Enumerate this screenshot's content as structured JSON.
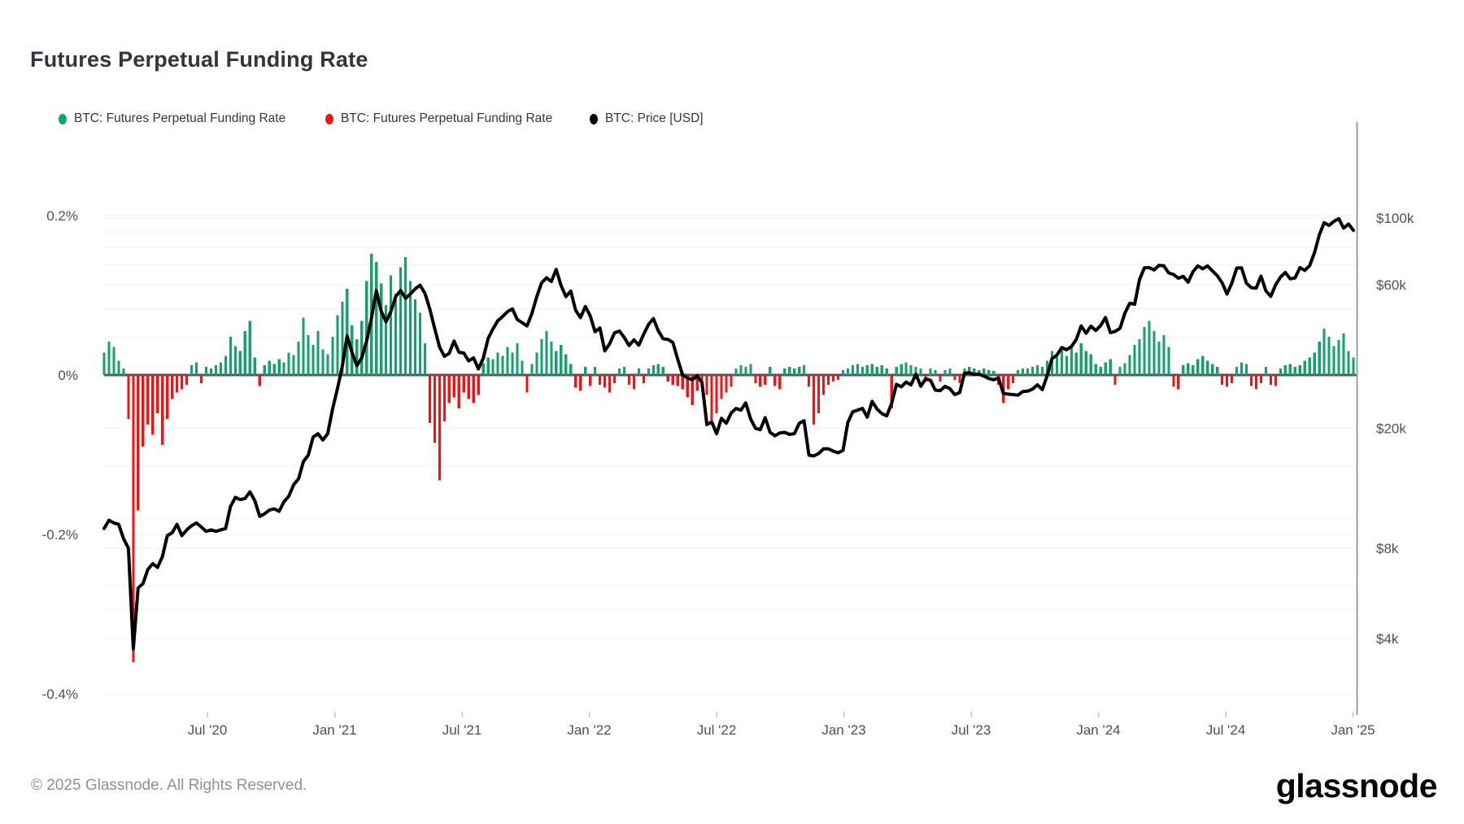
{
  "page": {
    "title": "Futures Perpetual Funding Rate"
  },
  "legend": {
    "items": [
      {
        "label": "BTC: Futures Perpetual Funding Rate",
        "color": "#12a36a"
      },
      {
        "label": "BTC: Futures Perpetual Funding Rate",
        "color": "#ef1313"
      },
      {
        "label": "BTC: Price [USD]",
        "color": "#000000"
      }
    ]
  },
  "footer": {
    "copyright": "© 2025 Glassnode. All Rights Reserved.",
    "brand": "glassnode"
  },
  "colors": {
    "funding_positive": "#12a36a",
    "funding_negative": "#ef1313",
    "price_line": "#000000",
    "zero_line": "#52555a",
    "gridline": "#f1f2f5",
    "axis_text": "#4c5157",
    "right_axis_line": "#9a9da2",
    "tick_mark": "#c3c6ca"
  },
  "chart_data": {
    "type": "bar+line",
    "title": "Futures Perpetual Funding Rate",
    "x_start": "2020-02-03",
    "x_step_days": 7,
    "x_axis": {
      "ticks": [
        "Jul '20",
        "Jan '21",
        "Jul '21",
        "Jan '22",
        "Jul '22",
        "Jan '23",
        "Jul '23",
        "Jan '24",
        "Jul '24",
        "Jan '25"
      ]
    },
    "left_axis": {
      "label": "BTC Futures Perpetual Funding Rate",
      "unit": "%",
      "ticks": [
        {
          "label": "0.2%",
          "value_pct": 0.2
        },
        {
          "label": "0%",
          "value_pct": 0
        },
        {
          "label": "-0.2%",
          "value_pct": -0.2
        },
        {
          "label": "-0.4%",
          "value_pct": -0.4
        }
      ],
      "gridlines_pct": [
        0.2,
        -0.2,
        -0.4
      ],
      "range_pct": [
        -0.45,
        0.3
      ]
    },
    "right_axis": {
      "label": "BTC Price [USD]",
      "scale": "log",
      "ticks": [
        {
          "label": "$100k",
          "value_k": 100
        },
        {
          "label": "$60k",
          "value_k": 60
        },
        {
          "label": "$20k",
          "value_k": 20
        },
        {
          "label": "$8k",
          "value_k": 8
        },
        {
          "label": "$4k",
          "value_k": 4
        }
      ],
      "gridlines_k": [
        100,
        90,
        80,
        70,
        60,
        50,
        40,
        30,
        20,
        15,
        10,
        8,
        6,
        5,
        4
      ]
    },
    "funding_rate_pct_weekly": [
      0.028,
      0.042,
      0.035,
      0.018,
      0.008,
      -0.055,
      -0.36,
      -0.17,
      -0.09,
      -0.062,
      -0.075,
      -0.048,
      -0.088,
      -0.055,
      -0.03,
      -0.022,
      -0.018,
      -0.012,
      0.012,
      0.016,
      -0.01,
      0.01,
      0.008,
      0.012,
      0.016,
      0.024,
      0.048,
      0.036,
      0.03,
      0.055,
      0.068,
      0.022,
      -0.014,
      0.012,
      0.018,
      0.014,
      0.02,
      0.016,
      0.028,
      0.025,
      0.042,
      0.072,
      0.05,
      0.038,
      0.055,
      0.032,
      0.026,
      0.048,
      0.075,
      0.092,
      0.108,
      0.062,
      0.045,
      0.068,
      0.118,
      0.152,
      0.142,
      0.115,
      0.088,
      0.125,
      0.102,
      0.135,
      0.148,
      0.118,
      0.095,
      0.078,
      0.04,
      -0.06,
      -0.085,
      -0.132,
      -0.058,
      -0.035,
      -0.028,
      -0.042,
      -0.022,
      -0.03,
      -0.035,
      -0.025,
      0.015,
      0.022,
      0.02,
      0.028,
      0.024,
      0.035,
      0.028,
      0.04,
      0.018,
      -0.022,
      0.014,
      0.028,
      0.045,
      0.055,
      0.042,
      0.03,
      0.038,
      0.026,
      0.014,
      -0.016,
      -0.02,
      0.01,
      -0.014,
      0.01,
      -0.012,
      -0.016,
      -0.022,
      -0.01,
      0.008,
      0.01,
      -0.012,
      -0.018,
      0.008,
      -0.01,
      0.008,
      0.012,
      0.014,
      0.01,
      -0.008,
      -0.012,
      -0.014,
      -0.018,
      -0.028,
      -0.038,
      -0.02,
      -0.014,
      -0.025,
      -0.062,
      -0.048,
      -0.03,
      -0.022,
      -0.015,
      0.008,
      0.012,
      0.01,
      0.014,
      -0.01,
      -0.015,
      -0.012,
      0.01,
      -0.014,
      -0.018,
      0.008,
      0.01,
      0.008,
      0.01,
      0.012,
      -0.015,
      -0.062,
      -0.048,
      -0.025,
      -0.012,
      -0.008,
      -0.006,
      0.006,
      0.008,
      0.012,
      0.014,
      0.01,
      0.012,
      0.014,
      0.01,
      0.012,
      0.008,
      -0.042,
      0.01,
      0.014,
      0.016,
      0.012,
      0.01,
      0.008,
      -0.008,
      0.008,
      0.006,
      -0.008,
      0.006,
      0.008,
      -0.006,
      -0.01,
      0.008,
      0.01,
      0.008,
      0.006,
      0.008,
      0.006,
      0.005,
      -0.012,
      -0.035,
      -0.018,
      -0.01,
      0.006,
      0.008,
      0.008,
      0.01,
      0.012,
      0.01,
      0.018,
      0.03,
      0.026,
      0.032,
      0.024,
      0.035,
      0.028,
      0.04,
      0.03,
      0.026,
      0.014,
      0.01,
      0.016,
      0.02,
      -0.012,
      0.01,
      0.015,
      0.025,
      0.038,
      0.045,
      0.06,
      0.068,
      0.055,
      0.042,
      0.05,
      0.035,
      -0.015,
      -0.018,
      0.012,
      0.015,
      0.012,
      0.02,
      0.024,
      0.018,
      0.014,
      0.01,
      -0.012,
      -0.015,
      -0.01,
      0.01,
      0.016,
      0.014,
      -0.014,
      -0.018,
      -0.01,
      0.01,
      -0.012,
      -0.014,
      0.008,
      0.012,
      0.014,
      0.01,
      0.012,
      0.018,
      0.022,
      0.028,
      0.042,
      0.058,
      0.048,
      0.036,
      0.044,
      0.052,
      0.03,
      0.022
    ],
    "price_usd_k_weekly": [
      9.3,
      9.9,
      9.7,
      9.6,
      8.6,
      8.0,
      3.7,
      5.9,
      6.1,
      6.8,
      7.1,
      6.9,
      7.5,
      8.8,
      9.0,
      9.6,
      8.8,
      9.2,
      9.5,
      9.7,
      9.4,
      9.1,
      9.2,
      9.1,
      9.2,
      9.3,
      11.0,
      11.8,
      11.6,
      11.7,
      12.3,
      11.5,
      10.2,
      10.4,
      10.7,
      10.8,
      10.6,
      11.4,
      11.9,
      13.0,
      13.6,
      15.5,
      16.3,
      18.7,
      19.2,
      18.3,
      19.2,
      23.2,
      27.1,
      32.2,
      40.6,
      35.8,
      32.3,
      34.3,
      38.9,
      46.4,
      57.4,
      49.0,
      45.2,
      48.9,
      54.9,
      57.4,
      54.1,
      55.9,
      58.2,
      59.8,
      56.2,
      49.9,
      43.0,
      37.3,
      34.7,
      35.5,
      39.0,
      35.8,
      35.6,
      33.5,
      34.3,
      31.5,
      34.2,
      39.8,
      42.8,
      45.6,
      47.1,
      48.9,
      49.9,
      46.0,
      44.9,
      43.8,
      48.1,
      54.7,
      60.9,
      63.3,
      61.5,
      67.5,
      59.7,
      54.8,
      57.2,
      49.4,
      46.7,
      50.8,
      47.3,
      41.9,
      43.1,
      36.2,
      38.2,
      41.5,
      42.1,
      40.1,
      37.7,
      39.4,
      37.8,
      41.1,
      44.3,
      46.3,
      42.2,
      39.7,
      39.5,
      38.6,
      34.0,
      30.1,
      29.4,
      29.0,
      29.9,
      28.4,
      20.6,
      21.0,
      19.2,
      21.6,
      20.8,
      22.5,
      23.3,
      23.0,
      24.3,
      21.5,
      20.0,
      19.8,
      21.7,
      19.4,
      18.9,
      19.3,
      19.4,
      19.1,
      19.2,
      20.8,
      21.2,
      16.3,
      16.2,
      16.5,
      17.1,
      17.1,
      16.8,
      16.6,
      16.9,
      20.9,
      22.7,
      23.0,
      23.3,
      21.8,
      24.6,
      23.2,
      22.4,
      22.0,
      24.2,
      28.0,
      27.5,
      28.5,
      27.9,
      30.3,
      27.6,
      29.2,
      28.9,
      26.8,
      26.7,
      27.6,
      27.1,
      25.9,
      26.3,
      30.5,
      30.6,
      30.2,
      30.3,
      29.8,
      29.3,
      29.0,
      29.4,
      26.1,
      26.0,
      25.9,
      25.8,
      26.5,
      26.6,
      27.0,
      27.9,
      26.9,
      29.9,
      34.1,
      35.0,
      37.1,
      36.5,
      37.4,
      39.5,
      43.8,
      41.4,
      43.7,
      42.3,
      43.9,
      46.7,
      41.6,
      42.0,
      43.0,
      48.3,
      52.1,
      51.7,
      62.4,
      68.3,
      68.4,
      67.2,
      69.6,
      69.4,
      65.7,
      64.9,
      63.1,
      64.0,
      61.2,
      66.3,
      69.3,
      67.8,
      69.3,
      66.7,
      64.3,
      60.9,
      55.9,
      60.8,
      68.2,
      68.3,
      60.7,
      58.7,
      58.5,
      64.1,
      57.3,
      54.9,
      60.0,
      63.6,
      65.9,
      62.8,
      63.2,
      68.4,
      67.0,
      69.4,
      76.7,
      88.0,
      96.5,
      94.5,
      97.5,
      99.5,
      92.5,
      95.5,
      91.0
    ]
  }
}
